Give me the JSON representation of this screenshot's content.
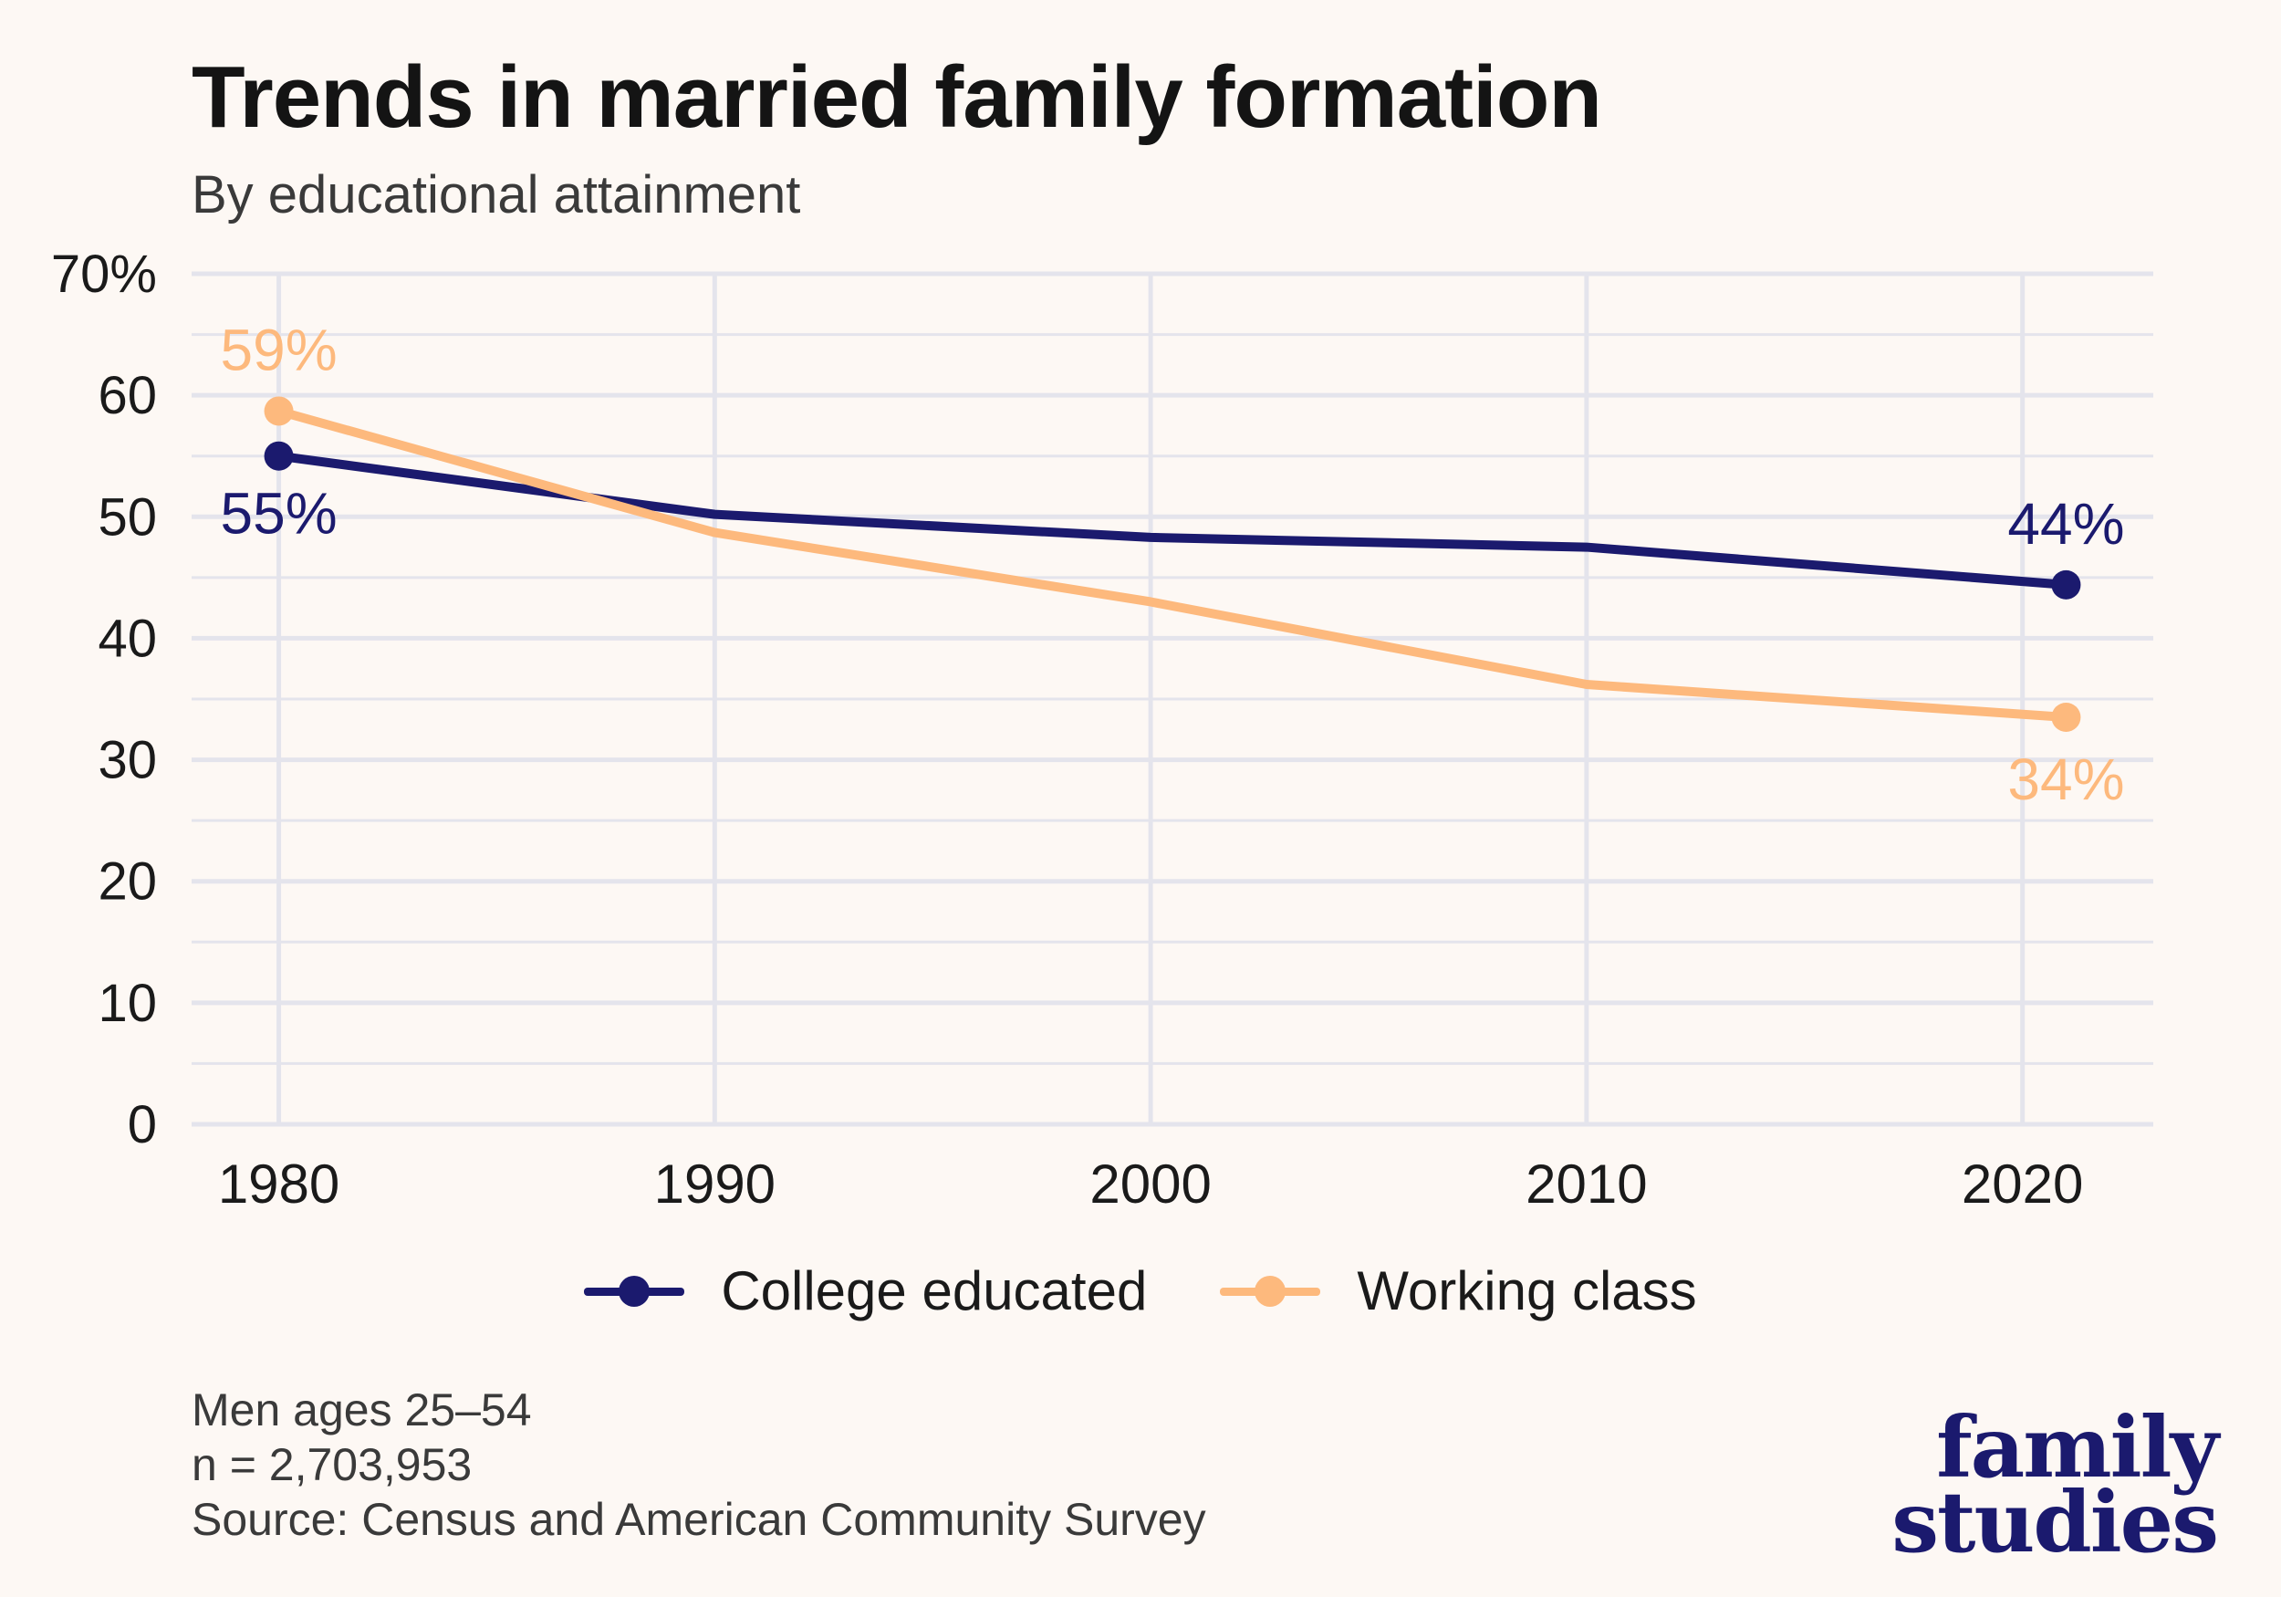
{
  "title": "Trends in married family formation",
  "subtitle": "By educational attainment",
  "colors": {
    "college": "#1b1a6e",
    "working": "#fdb97d",
    "grid": "#e4e4ec"
  },
  "chart_data": {
    "type": "line",
    "x": [
      1980,
      1990,
      2000,
      2010,
      2021
    ],
    "x_ticks": [
      1980,
      1990,
      2000,
      2010,
      2020
    ],
    "x_tick_labels": [
      "1980",
      "1990",
      "2000",
      "2010",
      "2020"
    ],
    "ylim": [
      0,
      70
    ],
    "y_ticks": [
      0,
      10,
      20,
      30,
      40,
      50,
      60,
      70
    ],
    "y_tick_labels": [
      "0",
      "10",
      "20",
      "30",
      "40",
      "50",
      "60",
      "70%"
    ],
    "grid": true,
    "legend_position": "bottom",
    "series": [
      {
        "name": "College educated",
        "color": "#1b1a6e",
        "values": [
          55,
          50.2,
          48.3,
          47.5,
          44.4
        ],
        "end_labels": {
          "first": "55%",
          "last": "44%"
        }
      },
      {
        "name": "Working class",
        "color": "#fdb97d",
        "values": [
          58.7,
          48.7,
          43.0,
          36.2,
          33.5
        ],
        "end_labels": {
          "first": "59%",
          "last": "34%"
        }
      }
    ]
  },
  "legend": {
    "college": "College educated",
    "working": "Working class"
  },
  "footnotes": {
    "line1": "Men ages 25–54",
    "line2": "n = 2,703,953",
    "line3": "Source: Census and American Community Survey"
  },
  "logo": {
    "line1": "family",
    "line2": "studies"
  }
}
